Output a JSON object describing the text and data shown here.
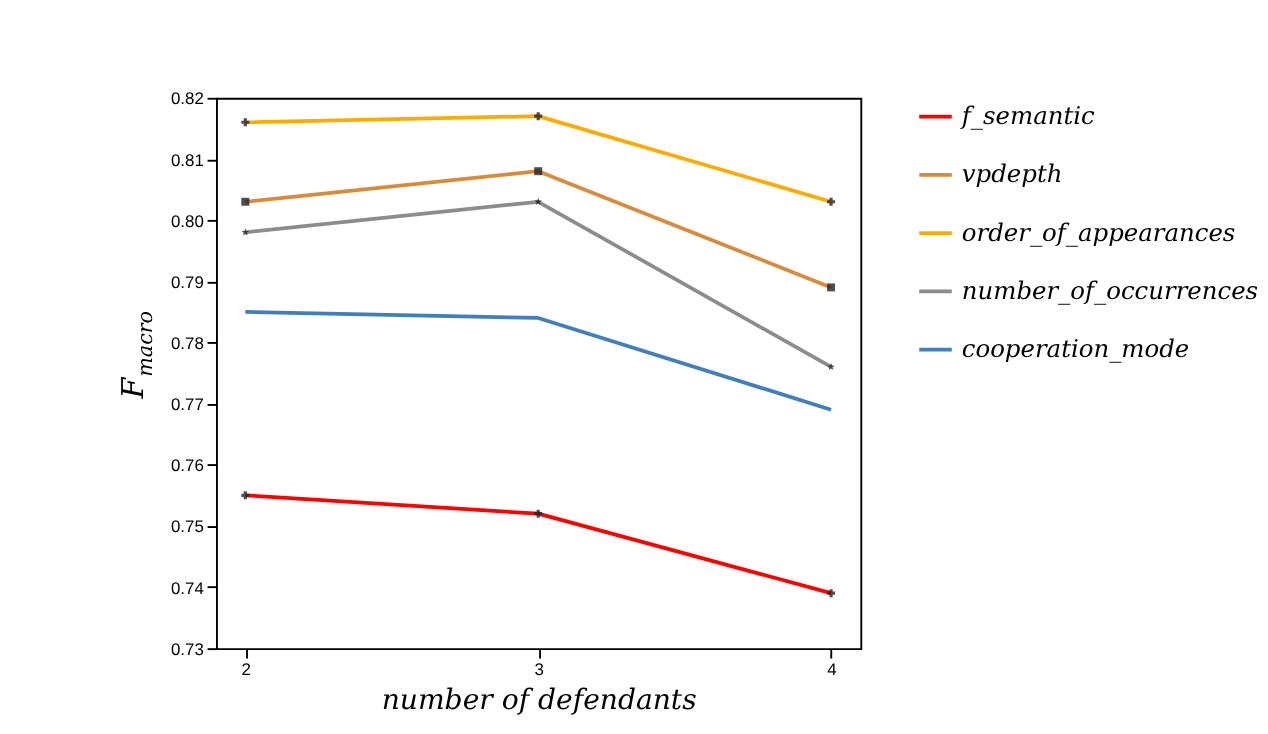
{
  "chart_data": {
    "type": "line",
    "xlabel": "number of defendants",
    "ylabel": "F$_{macro}$",
    "x": [
      2,
      3,
      4
    ],
    "xlim": [
      1.9,
      4.1
    ],
    "xticks": [
      2,
      3,
      4
    ],
    "ylim": [
      0.73,
      0.82
    ],
    "yticks": [
      0.73,
      0.74,
      0.75,
      0.76,
      0.77,
      0.78,
      0.79,
      {
        "value": 0.8,
        "label": "0.80"
      },
      0.81,
      0.82
    ],
    "grid": false,
    "legend": "right",
    "line_style": "solid",
    "series": [
      {
        "name": "f_semantic",
        "color": "#ff0000",
        "marker": "cross",
        "values": [
          0.755,
          0.752,
          0.739
        ]
      },
      {
        "name": "vpdepth",
        "color": "#d98b3a",
        "marker": "square",
        "values": [
          0.803,
          0.808,
          0.789
        ]
      },
      {
        "name": "order_of_appearances",
        "color": "#ffaa00",
        "marker": "cross",
        "values": [
          0.816,
          0.817,
          0.803
        ]
      },
      {
        "name": "number_of_occurrences",
        "color": "#8c8c8c",
        "marker": "star",
        "values": [
          0.798,
          0.803,
          0.776
        ]
      },
      {
        "name": "cooperation_mode",
        "color": "#3f7fbf",
        "marker": "none",
        "values": [
          0.785,
          0.784,
          0.769
        ]
      }
    ]
  }
}
